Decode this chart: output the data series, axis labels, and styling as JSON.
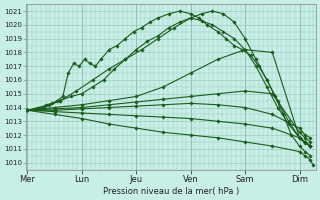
{
  "ylabel": "Pression niveau de la mer( hPa )",
  "x_labels": [
    "Mer",
    "Lun",
    "Jeu",
    "Ven",
    "Sam",
    "Dim"
  ],
  "x_ticks": [
    0,
    1,
    2,
    3,
    4,
    5
  ],
  "xlim": [
    -0.02,
    5.3
  ],
  "ylim": [
    1009.5,
    1021.5
  ],
  "yticks": [
    1010,
    1011,
    1012,
    1013,
    1014,
    1015,
    1016,
    1017,
    1018,
    1019,
    1020,
    1021
  ],
  "bg_color": "#c8eee8",
  "grid_color": "#99ccbb",
  "line_color": "#1a5c1a",
  "marker_color": "#1a5c1a",
  "series": [
    {
      "x": [
        0.0,
        0.15,
        0.25,
        0.35,
        0.45,
        0.55,
        0.65,
        0.75,
        0.85,
        0.95,
        1.05,
        1.15,
        1.25,
        1.35,
        1.5,
        1.65,
        1.8,
        1.95,
        2.1,
        2.25,
        2.4,
        2.6,
        2.8,
        3.0,
        3.15,
        3.3,
        3.5,
        3.65,
        3.8,
        3.95,
        4.1,
        4.25,
        4.4,
        4.55,
        4.7,
        4.85,
        5.0,
        5.1,
        5.2
      ],
      "y": [
        1013.8,
        1013.9,
        1014.0,
        1014.2,
        1014.3,
        1014.5,
        1014.8,
        1016.5,
        1017.2,
        1017.0,
        1017.5,
        1017.2,
        1017.0,
        1017.5,
        1018.2,
        1018.5,
        1019.0,
        1019.5,
        1019.8,
        1020.2,
        1020.5,
        1020.8,
        1021.0,
        1020.8,
        1020.5,
        1020.0,
        1019.5,
        1019.0,
        1018.5,
        1018.2,
        1017.8,
        1017.0,
        1016.0,
        1014.8,
        1013.5,
        1012.0,
        1011.2,
        1010.8,
        1010.5
      ],
      "marker": "D",
      "ms": 1.8,
      "lw": 0.8
    },
    {
      "x": [
        0.0,
        0.2,
        0.4,
        0.6,
        0.8,
        1.0,
        1.2,
        1.4,
        1.6,
        1.8,
        2.0,
        2.2,
        2.4,
        2.6,
        2.8,
        3.0,
        3.2,
        3.4,
        3.6,
        3.8,
        4.0,
        4.2,
        4.4,
        4.6,
        4.8,
        5.0,
        5.1,
        5.2
      ],
      "y": [
        1013.8,
        1014.0,
        1014.2,
        1014.5,
        1014.8,
        1015.0,
        1015.5,
        1016.0,
        1016.8,
        1017.5,
        1018.2,
        1018.8,
        1019.2,
        1019.8,
        1020.2,
        1020.5,
        1020.3,
        1020.0,
        1019.5,
        1019.0,
        1018.2,
        1017.0,
        1015.5,
        1014.0,
        1012.8,
        1011.8,
        1011.4,
        1011.2
      ],
      "marker": "D",
      "ms": 1.8,
      "lw": 0.8
    },
    {
      "x": [
        0.0,
        0.3,
        0.6,
        0.9,
        1.2,
        1.5,
        1.8,
        2.1,
        2.4,
        2.7,
        3.0,
        3.2,
        3.4,
        3.6,
        3.8,
        4.0,
        4.2,
        4.4,
        4.6,
        4.8,
        5.0,
        5.1,
        5.2
      ],
      "y": [
        1013.8,
        1014.0,
        1014.5,
        1015.2,
        1016.0,
        1016.8,
        1017.5,
        1018.2,
        1019.0,
        1019.8,
        1020.5,
        1020.8,
        1021.0,
        1020.8,
        1020.2,
        1019.0,
        1017.5,
        1016.0,
        1014.5,
        1013.0,
        1011.8,
        1011.5,
        1011.2
      ],
      "marker": "D",
      "ms": 1.8,
      "lw": 0.8
    },
    {
      "x": [
        0.0,
        0.5,
        1.0,
        1.5,
        2.0,
        2.5,
        3.0,
        3.5,
        4.0,
        4.5,
        5.0,
        5.1,
        5.2
      ],
      "y": [
        1013.8,
        1014.0,
        1014.2,
        1014.5,
        1014.8,
        1015.5,
        1016.5,
        1017.5,
        1018.2,
        1018.0,
        1011.8,
        1011.5,
        1011.2
      ],
      "marker": "D",
      "ms": 1.8,
      "lw": 0.8
    },
    {
      "x": [
        0.0,
        0.5,
        1.0,
        1.5,
        2.0,
        2.5,
        3.0,
        3.5,
        4.0,
        4.5,
        5.0,
        5.1,
        5.2
      ],
      "y": [
        1013.8,
        1013.9,
        1014.0,
        1014.2,
        1014.4,
        1014.6,
        1014.8,
        1015.0,
        1015.2,
        1015.0,
        1012.2,
        1011.8,
        1011.5
      ],
      "marker": "D",
      "ms": 1.8,
      "lw": 0.8
    },
    {
      "x": [
        0.0,
        0.5,
        1.0,
        1.5,
        2.0,
        2.5,
        3.0,
        3.5,
        4.0,
        4.5,
        5.0,
        5.1,
        5.2
      ],
      "y": [
        1013.8,
        1013.8,
        1013.9,
        1014.0,
        1014.1,
        1014.2,
        1014.3,
        1014.2,
        1014.0,
        1013.5,
        1012.5,
        1012.0,
        1011.8
      ],
      "marker": "D",
      "ms": 1.8,
      "lw": 0.8
    },
    {
      "x": [
        0.0,
        0.5,
        1.0,
        1.5,
        2.0,
        2.5,
        3.0,
        3.5,
        4.0,
        4.5,
        5.0,
        5.1,
        5.2
      ],
      "y": [
        1013.8,
        1013.7,
        1013.6,
        1013.5,
        1013.4,
        1013.3,
        1013.2,
        1013.0,
        1012.8,
        1012.5,
        1011.8,
        1011.5,
        1011.2
      ],
      "marker": "D",
      "ms": 1.8,
      "lw": 0.8
    },
    {
      "x": [
        0.0,
        0.5,
        1.0,
        1.5,
        2.0,
        2.5,
        3.0,
        3.5,
        4.0,
        4.5,
        5.0,
        5.1,
        5.2,
        5.25
      ],
      "y": [
        1013.8,
        1013.5,
        1013.2,
        1012.8,
        1012.5,
        1012.2,
        1012.0,
        1011.8,
        1011.5,
        1011.2,
        1010.8,
        1010.5,
        1010.2,
        1009.8
      ],
      "marker": "D",
      "ms": 1.8,
      "lw": 0.8
    }
  ],
  "vertical_lines_x": [
    0.0,
    1.0,
    2.0,
    3.0,
    4.0,
    5.0
  ]
}
